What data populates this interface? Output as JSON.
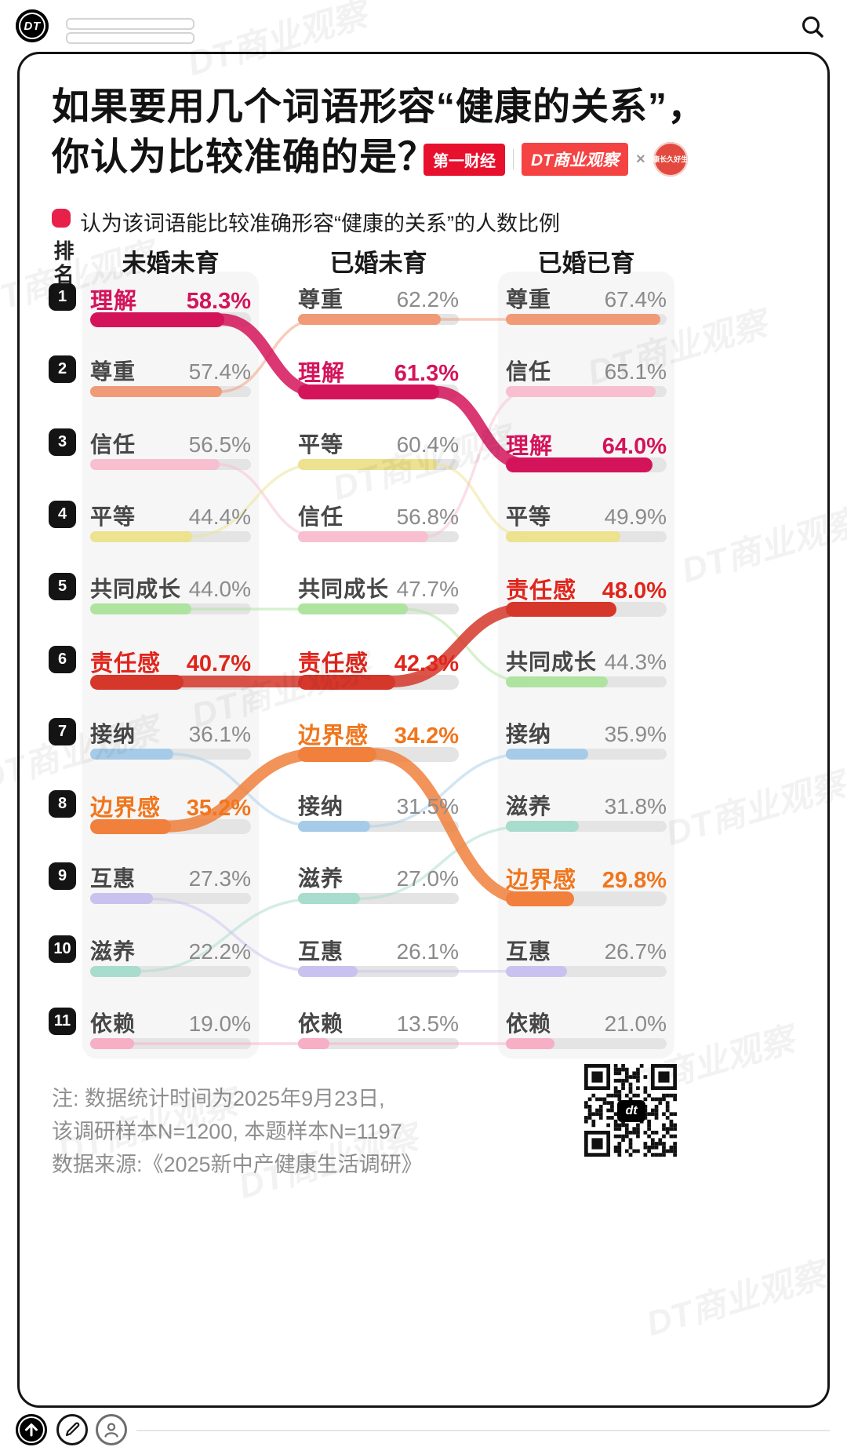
{
  "top_bar": {
    "logo_text": "DT"
  },
  "header": {
    "title_line1": "如果要用几个词语形容“健康的关系”，",
    "title_line2": "你认为比较准确的是？",
    "badges": {
      "b1": "第一财经",
      "b2": "DT商业观察",
      "times": "×",
      "b3": "健康长久好生活"
    }
  },
  "legend": {
    "label": "认为该词语能比较准确形容“健康的关系”的人数比例"
  },
  "ui_colors": {
    "accent": "#e8214a",
    "badge_red_1": "#e8112d",
    "badge_red_2": "#f54343",
    "badge_red_3": "#e34a3f"
  },
  "chart_data": {
    "type": "bar",
    "subtype": "ranked-bump-bars",
    "title": "如果要用几个词语形容“健康的关系”，你认为比较准确的是？",
    "legend": "认为该词语能比较准确形容“健康的关系”的人数比例",
    "rank_axis_label": "排名",
    "value_suffix": "%",
    "scale_max": 70,
    "highlight_words": [
      "理解",
      "责任感",
      "边界感"
    ],
    "colors": {
      "理解": "#d4145a",
      "尊重": "#f09a77",
      "信任": "#f7bfcf",
      "平等": "#ece28f",
      "共同成长": "#aee3a0",
      "责任感": "#d6372b",
      "接纳": "#a6cbe8",
      "边界感": "#f0803c",
      "互惠": "#c9c2ef",
      "滋养": "#a8dccc",
      "依赖": "#f6afc4"
    },
    "text_colors": {
      "理解": "#d4145a",
      "责任感": "#e0251c",
      "边界感": "#f0761d"
    },
    "groups": [
      {
        "label": "未婚未育",
        "items": [
          {
            "rank": 1,
            "word": "理解",
            "value": 58.3
          },
          {
            "rank": 2,
            "word": "尊重",
            "value": 57.4
          },
          {
            "rank": 3,
            "word": "信任",
            "value": 56.5
          },
          {
            "rank": 4,
            "word": "平等",
            "value": 44.4
          },
          {
            "rank": 5,
            "word": "共同成长",
            "value": 44.0
          },
          {
            "rank": 6,
            "word": "责任感",
            "value": 40.7
          },
          {
            "rank": 7,
            "word": "接纳",
            "value": 36.1
          },
          {
            "rank": 8,
            "word": "边界感",
            "value": 35.2
          },
          {
            "rank": 9,
            "word": "互惠",
            "value": 27.3
          },
          {
            "rank": 10,
            "word": "滋养",
            "value": 22.2
          },
          {
            "rank": 11,
            "word": "依赖",
            "value": 19.0
          }
        ]
      },
      {
        "label": "已婚未育",
        "items": [
          {
            "rank": 1,
            "word": "尊重",
            "value": 62.2
          },
          {
            "rank": 2,
            "word": "理解",
            "value": 61.3
          },
          {
            "rank": 3,
            "word": "平等",
            "value": 60.4
          },
          {
            "rank": 4,
            "word": "信任",
            "value": 56.8
          },
          {
            "rank": 5,
            "word": "共同成长",
            "value": 47.7
          },
          {
            "rank": 6,
            "word": "责任感",
            "value": 42.3
          },
          {
            "rank": 7,
            "word": "边界感",
            "value": 34.2
          },
          {
            "rank": 8,
            "word": "接纳",
            "value": 31.5
          },
          {
            "rank": 9,
            "word": "滋养",
            "value": 27.0
          },
          {
            "rank": 10,
            "word": "互惠",
            "value": 26.1
          },
          {
            "rank": 11,
            "word": "依赖",
            "value": 13.5
          }
        ]
      },
      {
        "label": "已婚已育",
        "items": [
          {
            "rank": 1,
            "word": "尊重",
            "value": 67.4
          },
          {
            "rank": 2,
            "word": "信任",
            "value": 65.1
          },
          {
            "rank": 3,
            "word": "理解",
            "value": 64.0
          },
          {
            "rank": 4,
            "word": "平等",
            "value": 49.9
          },
          {
            "rank": 5,
            "word": "责任感",
            "value": 48.0
          },
          {
            "rank": 6,
            "word": "共同成长",
            "value": 44.3
          },
          {
            "rank": 7,
            "word": "接纳",
            "value": 35.9
          },
          {
            "rank": 8,
            "word": "滋养",
            "value": 31.8
          },
          {
            "rank": 9,
            "word": "边界感",
            "value": 29.8
          },
          {
            "rank": 10,
            "word": "互惠",
            "value": 26.7
          },
          {
            "rank": 11,
            "word": "依赖",
            "value": 21.0
          }
        ]
      }
    ]
  },
  "notes": {
    "line1": "注: 数据统计时间为2025年9月23日,",
    "line2": "该调研样本N=1200, 本题样本N=1197",
    "line3": "数据来源:《2025新中产健康生活调研》"
  },
  "qr": {
    "label": "dt"
  },
  "watermark_text": "DT商业观察"
}
